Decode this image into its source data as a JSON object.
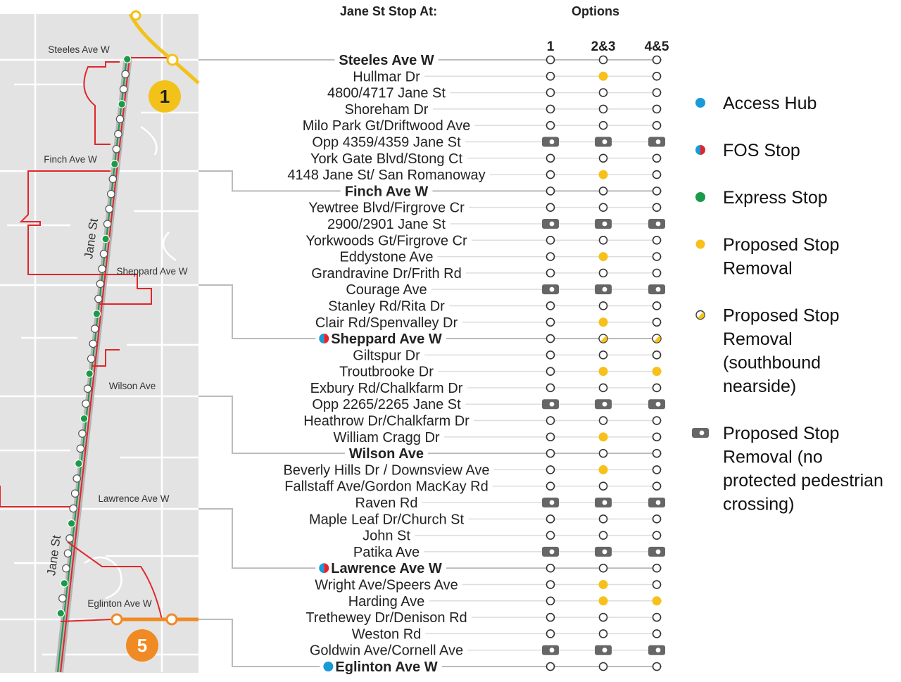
{
  "header": {
    "title": "Jane St Stop At:",
    "options": "Options"
  },
  "option_labels": [
    "1",
    "2&3",
    "4&5"
  ],
  "map": {
    "streets": [
      "Steeles Ave W",
      "Finch Ave W",
      "Sheppard Ave W",
      "Wilson Ave",
      "Lawrence Ave W",
      "Eglinton Ave W"
    ],
    "jane_labels": [
      "Jane St",
      "Jane St"
    ],
    "line_numbers": [
      "1",
      "5"
    ]
  },
  "stops": [
    {
      "name": "Steeles Ave W",
      "bold": true,
      "options": [
        "keep",
        "keep",
        "keep"
      ]
    },
    {
      "name": "Hullmar Dr",
      "options": [
        "keep",
        "remove",
        "keep"
      ]
    },
    {
      "name": "4800/4717 Jane St",
      "options": [
        "keep",
        "keep",
        "keep"
      ]
    },
    {
      "name": "Shoreham Dr",
      "options": [
        "keep",
        "keep",
        "keep"
      ]
    },
    {
      "name": "Milo Park Gt/Driftwood Ave",
      "options": [
        "keep",
        "keep",
        "keep"
      ]
    },
    {
      "name": "Opp 4359/4359 Jane St",
      "options": [
        "ped",
        "ped",
        "ped"
      ]
    },
    {
      "name": "York Gate Blvd/Stong Ct",
      "options": [
        "keep",
        "keep",
        "keep"
      ]
    },
    {
      "name": "4148 Jane St/  San Romanoway",
      "options": [
        "keep",
        "remove",
        "keep"
      ]
    },
    {
      "name": "Finch Ave W",
      "bold": true,
      "options": [
        "keep",
        "keep",
        "keep"
      ]
    },
    {
      "name": "Yewtree Blvd/Firgrove Cr",
      "options": [
        "keep",
        "keep",
        "keep"
      ]
    },
    {
      "name": "2900/2901 Jane St",
      "options": [
        "ped",
        "ped",
        "ped"
      ]
    },
    {
      "name": "Yorkwoods Gt/Firgrove Cr",
      "options": [
        "keep",
        "keep",
        "keep"
      ]
    },
    {
      "name": "Eddystone Ave",
      "options": [
        "keep",
        "remove",
        "keep"
      ]
    },
    {
      "name": "Grandravine Dr/Frith Rd",
      "options": [
        "keep",
        "keep",
        "keep"
      ]
    },
    {
      "name": "Courage Ave",
      "options": [
        "ped",
        "ped",
        "ped"
      ]
    },
    {
      "name": "Stanley Rd/Rita Dr",
      "options": [
        "keep",
        "keep",
        "keep"
      ]
    },
    {
      "name": "Clair Rd/Spenvalley Dr",
      "options": [
        "keep",
        "remove",
        "keep"
      ]
    },
    {
      "name": "Sheppard Ave W",
      "bold": true,
      "marker": "fos",
      "options": [
        "keep",
        "half",
        "half"
      ]
    },
    {
      "name": "Giltspur Dr",
      "options": [
        "keep",
        "keep",
        "keep"
      ]
    },
    {
      "name": "Troutbrooke Dr",
      "options": [
        "keep",
        "remove",
        "remove"
      ]
    },
    {
      "name": "Exbury Rd/Chalkfarm Dr",
      "options": [
        "keep",
        "keep",
        "keep"
      ]
    },
    {
      "name": "Opp 2265/2265 Jane St",
      "options": [
        "ped",
        "ped",
        "ped"
      ]
    },
    {
      "name": "Heathrow Dr/Chalkfarm Dr",
      "options": [
        "keep",
        "keep",
        "keep"
      ]
    },
    {
      "name": "William Cragg Dr",
      "options": [
        "keep",
        "remove",
        "keep"
      ]
    },
    {
      "name": "Wilson Ave",
      "bold": true,
      "options": [
        "keep",
        "keep",
        "keep"
      ]
    },
    {
      "name": "Beverly Hills Dr / Downsview Ave",
      "options": [
        "keep",
        "remove",
        "keep"
      ]
    },
    {
      "name": "Fallstaff Ave/Gordon MacKay Rd",
      "options": [
        "keep",
        "keep",
        "keep"
      ]
    },
    {
      "name": "Raven Rd",
      "options": [
        "ped",
        "ped",
        "ped"
      ]
    },
    {
      "name": "Maple Leaf Dr/Church St",
      "options": [
        "keep",
        "keep",
        "keep"
      ]
    },
    {
      "name": "John St",
      "options": [
        "keep",
        "keep",
        "keep"
      ]
    },
    {
      "name": "Patika Ave",
      "options": [
        "ped",
        "ped",
        "ped"
      ]
    },
    {
      "name": "Lawrence Ave W",
      "bold": true,
      "marker": "fos",
      "options": [
        "keep",
        "keep",
        "keep"
      ]
    },
    {
      "name": "Wright Ave/Speers Ave",
      "options": [
        "keep",
        "remove",
        "keep"
      ]
    },
    {
      "name": "Harding Ave",
      "options": [
        "keep",
        "remove",
        "remove"
      ]
    },
    {
      "name": "Trethewey Dr/Denison Rd",
      "options": [
        "keep",
        "keep",
        "keep"
      ]
    },
    {
      "name": "Weston Rd",
      "options": [
        "keep",
        "keep",
        "keep"
      ]
    },
    {
      "name": "Goldwin Ave/Cornell Ave",
      "options": [
        "ped",
        "ped",
        "ped"
      ]
    },
    {
      "name": "Eglinton Ave W",
      "bold": true,
      "marker": "hub",
      "options": [
        "keep",
        "keep",
        "keep"
      ]
    }
  ],
  "legend": [
    {
      "kind": "hub",
      "lines": [
        "Access Hub"
      ]
    },
    {
      "kind": "fos",
      "lines": [
        "FOS Stop"
      ]
    },
    {
      "kind": "express",
      "lines": [
        "Express Stop"
      ]
    },
    {
      "kind": "remove",
      "lines": [
        "Proposed Stop",
        "Removal"
      ]
    },
    {
      "kind": "half",
      "lines": [
        "Proposed Stop",
        "Removal",
        "(southbound",
        "nearside)"
      ]
    },
    {
      "kind": "ped",
      "lines": [
        "Proposed Stop",
        "Removal (no",
        "protected pedestrian",
        "crossing)"
      ]
    }
  ]
}
